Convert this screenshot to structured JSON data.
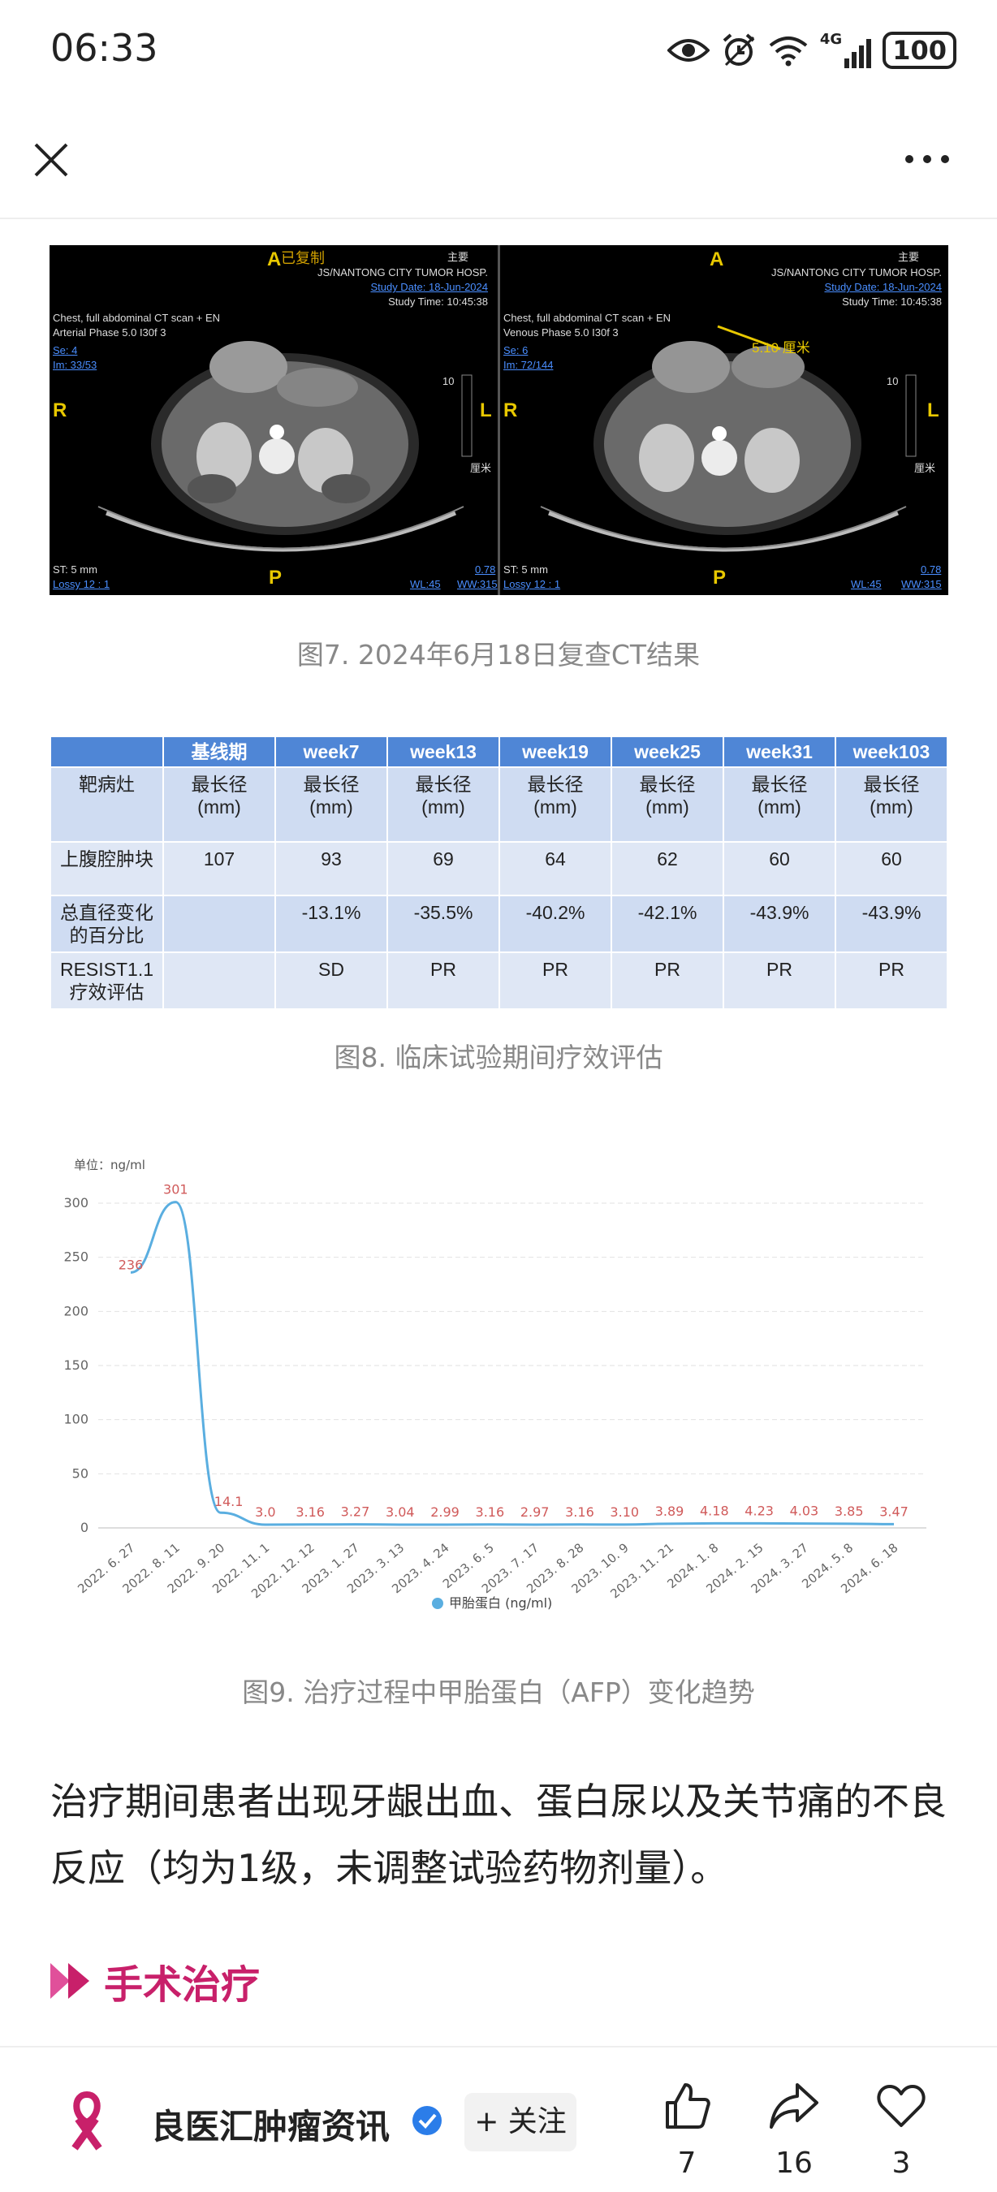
{
  "status_bar": {
    "time": "06:33",
    "network": "4G",
    "battery": "100"
  },
  "nav": {
    "close_icon": "close-icon",
    "more_icon": "more-icon"
  },
  "ct_figure": {
    "left": {
      "copy_mark": "已复制",
      "copy_mark_tag": "主要",
      "anterior": "A",
      "hospital": "JS/NANTONG CITY TUMOR HOSP.",
      "study_date": "Study Date: 18-Jun-2024",
      "study_time": "Study Time: 10:45:38",
      "scan1": "Chest, full abdominal CT scan + EN",
      "scan2": "Arterial Phase 5.0 I30f 3",
      "se": "Se: 4",
      "im": "Im: 33/53",
      "right_mark": "R",
      "left_mark": "L",
      "scale": "10",
      "scale_unit": "厘米",
      "posterior": "P",
      "st": "ST: 5 mm",
      "lossy": "Lossy 12 : 1",
      "zoom": "0.78",
      "wl": "WL:45",
      "ww": "WW:315"
    },
    "right": {
      "copy_mark_tag": "主要",
      "anterior": "A",
      "hospital": "JS/NANTONG CITY TUMOR HOSP.",
      "study_date": "Study Date: 18-Jun-2024",
      "study_time": "Study Time: 10:45:38",
      "scan1": "Chest, full abdominal CT scan + EN",
      "scan2": "Venous Phase 5.0 I30f 3",
      "se": "Se: 6",
      "im": "Im: 72/144",
      "measure": "5.10 厘米",
      "right_mark": "R",
      "left_mark": "L",
      "scale": "10",
      "scale_unit": "厘米",
      "posterior": "P",
      "st": "ST: 5 mm",
      "lossy": "Lossy 12 : 1",
      "zoom": "0.78",
      "wl": "WL:45",
      "ww": "WW:315"
    },
    "caption": "图7. 2024年6月18日复查CT结果"
  },
  "efficacy_table": {
    "headers": [
      "",
      "基线期",
      "week7",
      "week13",
      "week19",
      "week25",
      "week31",
      "week103"
    ],
    "rows": [
      [
        "靶病灶",
        "最长径\n(mm)",
        "最长径\n(mm)",
        "最长径\n(mm)",
        "最长径\n(mm)",
        "最长径\n(mm)",
        "最长径\n(mm)",
        "最长径\n(mm)"
      ],
      [
        "上腹腔肿块",
        "107",
        "93",
        "69",
        "64",
        "62",
        "60",
        "60"
      ],
      [
        "总直径变化\n的百分比",
        "",
        "-13.1%",
        "-35.5%",
        "-40.2%",
        "-42.1%",
        "-43.9%",
        "-43.9%"
      ],
      [
        "RESIST1.1\n疗效评估",
        "",
        "SD",
        "PR",
        "PR",
        "PR",
        "PR",
        "PR"
      ]
    ],
    "caption": "图8. 临床试验期间疗效评估"
  },
  "chart_data": {
    "type": "line",
    "unit_label": "单位：ng/ml",
    "x": [
      "2022. 6. 27",
      "2022. 8. 11",
      "2022. 9. 20",
      "2022. 11. 1",
      "2022. 12. 12",
      "2023. 1. 27",
      "2023. 3. 13",
      "2023. 4. 24",
      "2023. 6. 5",
      "2023. 7. 17",
      "2023. 8. 28",
      "2023. 10. 9",
      "2023. 11. 21",
      "2024. 1. 8",
      "2024. 2. 15",
      "2024. 3. 27",
      "2024. 5. 8",
      "2024. 6. 18"
    ],
    "series": [
      {
        "name": "甲胎蛋白 (ng/ml)",
        "values": [
          236,
          301,
          14.1,
          3.0,
          3.16,
          3.27,
          3.04,
          2.99,
          3.16,
          2.97,
          3.16,
          3.1,
          3.89,
          4.18,
          4.23,
          4.03,
          3.85,
          3.47
        ],
        "data_labels": [
          "236",
          "301",
          "14.1",
          "3.0",
          "3.16",
          "3.27",
          "3.04",
          "2.99",
          "3.16",
          "2.97",
          "3.16",
          "3.10",
          "3.89",
          "4.18",
          "4.23",
          "4.03",
          "3.85",
          "3.47"
        ],
        "color": "#5aaee0"
      }
    ],
    "y_ticks": [
      "0",
      "50",
      "100",
      "150",
      "200",
      "250",
      "300"
    ],
    "ylim": [
      0,
      320
    ],
    "label_color": "#d05a5a",
    "grid": true,
    "legend": "bottom",
    "caption": "图9. 治疗过程中甲胎蛋白（AFP）变化趋势"
  },
  "article": {
    "paragraph": "治疗期间患者出现牙龈出血、蛋白尿以及关节痛的不良反应（均为1级，未调整试验药物剂量）。",
    "section_title": "手术治疗",
    "section_icon": "double-chevron-icon",
    "accent_color": "#c8206a"
  },
  "bottom_bar": {
    "account_name": "良医汇肿瘤资讯",
    "follow_label": "+ 关注",
    "likes": "7",
    "shares": "16",
    "favorites": "3"
  }
}
